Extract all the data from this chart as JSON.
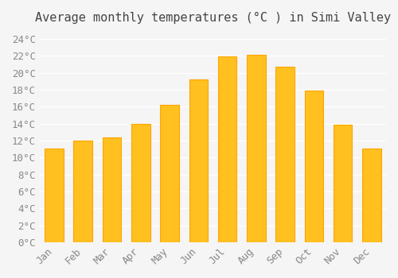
{
  "title": "Average monthly temperatures (°C ) in Simi Valley",
  "months": [
    "Jan",
    "Feb",
    "Mar",
    "Apr",
    "May",
    "Jun",
    "Jul",
    "Aug",
    "Sep",
    "Oct",
    "Nov",
    "Dec"
  ],
  "values": [
    11.1,
    12.0,
    12.4,
    14.0,
    16.2,
    19.2,
    21.9,
    22.1,
    20.7,
    17.9,
    13.9,
    11.1
  ],
  "bar_color": "#FFC020",
  "bar_edge_color": "#FFA500",
  "background_color": "#F5F5F5",
  "grid_color": "#FFFFFF",
  "ylim": [
    0,
    25
  ],
  "ytick_step": 2,
  "title_fontsize": 11,
  "tick_fontsize": 9,
  "font_family": "monospace"
}
